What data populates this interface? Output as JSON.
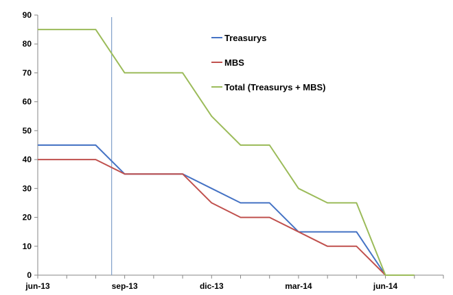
{
  "chart_data": {
    "type": "line",
    "x": [
      "jun-13",
      "jul-13",
      "ago-13",
      "sep-13",
      "oct-13",
      "nov-13",
      "dic-13",
      "ene-14",
      "feb-14",
      "mar-14",
      "abr-14",
      "may-14",
      "jun-14",
      "jul-14"
    ],
    "x_tick_labels": [
      "jun-13",
      "sep-13",
      "dic-13",
      "mar-14",
      "jun-14"
    ],
    "series": [
      {
        "name": "Treasurys",
        "color": "#4472C4",
        "values": [
          45,
          45,
          45,
          35,
          35,
          35,
          30,
          25,
          25,
          15,
          15,
          15,
          0,
          null
        ]
      },
      {
        "name": "MBS",
        "color": "#C0504D",
        "values": [
          40,
          40,
          40,
          35,
          35,
          35,
          25,
          20,
          20,
          15,
          10,
          10,
          0,
          null
        ]
      },
      {
        "name": "Total (Treasurys + MBS)",
        "color": "#9BBB59",
        "values": [
          85,
          85,
          85,
          70,
          70,
          70,
          55,
          45,
          45,
          30,
          25,
          25,
          0,
          0
        ]
      }
    ],
    "ylim": [
      0,
      90
    ],
    "y_ticks": [
      0,
      10,
      20,
      30,
      40,
      50,
      60,
      70,
      80,
      90
    ],
    "vertical_marker": {
      "color": "#7F9FC8"
    },
    "grid": false,
    "legend_position": "top-right",
    "title": "",
    "xlabel": "",
    "ylabel": ""
  }
}
